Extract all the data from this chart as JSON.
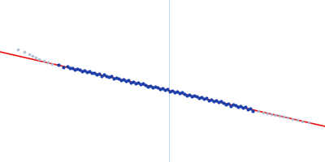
{
  "background_color": "#ffffff",
  "line_color": "#ee1111",
  "vline_color": "#aaccee",
  "vline_alpha": 0.75,
  "vline_x": 0.52,
  "blue_dots_color": "#1a3eaa",
  "blue_dots_size": 9,
  "gray_dots_color": "#aabbd0",
  "gray_dots_size": 7,
  "xlim": [
    0.0,
    1.0
  ],
  "ylim": [
    0.0,
    1.0
  ],
  "line_x0": 0.0,
  "line_y0": 0.68,
  "line_x1": 1.0,
  "line_y1": 0.22,
  "blue_x": [
    0.18,
    0.195,
    0.207,
    0.215,
    0.222,
    0.23,
    0.238,
    0.245,
    0.253,
    0.26,
    0.268,
    0.275,
    0.283,
    0.29,
    0.298,
    0.305,
    0.312,
    0.32,
    0.327,
    0.335,
    0.342,
    0.35,
    0.357,
    0.365,
    0.372,
    0.38,
    0.387,
    0.394,
    0.402,
    0.41,
    0.417,
    0.424,
    0.432,
    0.44,
    0.447,
    0.455,
    0.462,
    0.47,
    0.477,
    0.485,
    0.492,
    0.5,
    0.507,
    0.515,
    0.522,
    0.53,
    0.537,
    0.545,
    0.552,
    0.56,
    0.567,
    0.575,
    0.582,
    0.59,
    0.597,
    0.605,
    0.612,
    0.62,
    0.627,
    0.635,
    0.642,
    0.65,
    0.657,
    0.665,
    0.672,
    0.68,
    0.687,
    0.695,
    0.702,
    0.71,
    0.718,
    0.725,
    0.733,
    0.74,
    0.748,
    0.755,
    0.763,
    0.77,
    0.778
  ],
  "blue_y_noise": [
    0.004,
    -0.005,
    0.006,
    -0.003,
    0.002,
    -0.006,
    0.004,
    0.002,
    -0.004,
    0.005,
    -0.003,
    0.006,
    -0.002,
    0.004,
    -0.005,
    0.003,
    -0.004,
    0.006,
    0.002,
    -0.003,
    0.005,
    -0.006,
    0.003,
    0.004,
    -0.002,
    0.005,
    -0.003,
    0.006,
    -0.004,
    0.002,
    -0.005,
    0.004,
    -0.003,
    0.006,
    0.002,
    -0.004,
    0.005,
    -0.006,
    0.003,
    0.004,
    -0.002,
    0.005,
    -0.003,
    0.006,
    -0.004,
    0.002,
    -0.005,
    0.004,
    -0.003,
    0.006,
    0.002,
    -0.004,
    0.005,
    -0.006,
    0.003,
    0.004,
    -0.002,
    0.005,
    -0.003,
    0.006,
    -0.004,
    0.002,
    -0.005,
    0.004,
    -0.003,
    0.006,
    0.002,
    -0.004,
    0.005,
    -0.006,
    0.003,
    0.004,
    -0.002,
    0.005,
    -0.003,
    0.006,
    -0.004,
    0.002,
    -0.005
  ],
  "gray_left_x": [
    0.055,
    0.075,
    0.09,
    0.1,
    0.11,
    0.12,
    0.135,
    0.148,
    0.16
  ],
  "gray_left_y_offset": [
    0.04,
    0.035,
    0.025,
    0.02,
    0.015,
    0.01,
    0.005,
    0.002,
    0.0
  ],
  "gray_right_x": [
    0.795,
    0.81,
    0.822,
    0.835,
    0.848,
    0.86,
    0.872,
    0.885,
    0.9,
    0.915,
    0.93,
    0.95
  ],
  "gray_right_y_offset": [
    0.0,
    0.0,
    0.0,
    0.0,
    0.0,
    0.0,
    0.0,
    0.0,
    0.0,
    0.0,
    0.0,
    0.0
  ]
}
